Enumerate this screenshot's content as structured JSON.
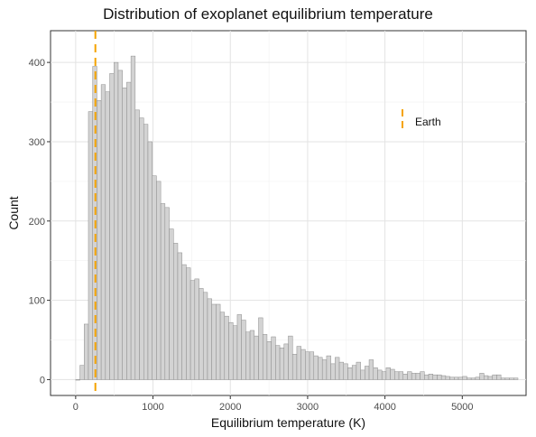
{
  "chart_data": {
    "type": "bar",
    "title": "Distribution of exoplanet equilibrium temperature",
    "xlabel": "Equilibrium temperature (K)",
    "ylabel": "Count",
    "xlim": [
      -325,
      5825
    ],
    "ylim": [
      -20,
      440
    ],
    "x_ticks": [
      0,
      1000,
      2000,
      3000,
      4000,
      5000
    ],
    "y_ticks": [
      0,
      100,
      200,
      300,
      400
    ],
    "grid": true,
    "bin_start": 0,
    "bin_width": 55,
    "bin_counts": [
      0,
      18,
      70,
      338,
      395,
      352,
      372,
      363,
      386,
      400,
      390,
      368,
      375,
      408,
      340,
      330,
      322,
      300,
      257,
      250,
      222,
      217,
      190,
      172,
      160,
      145,
      141,
      125,
      127,
      115,
      110,
      102,
      95,
      95,
      85,
      80,
      72,
      68,
      82,
      75,
      60,
      62,
      55,
      78,
      57,
      48,
      54,
      43,
      40,
      45,
      55,
      32,
      42,
      38,
      35,
      35,
      30,
      28,
      25,
      30,
      20,
      28,
      22,
      20,
      15,
      18,
      22,
      12,
      17,
      25,
      15,
      12,
      10,
      15,
      13,
      10,
      10,
      7,
      10,
      8,
      8,
      10,
      6,
      7,
      6,
      6,
      5,
      4,
      3,
      3,
      3,
      4,
      2,
      2,
      3,
      8,
      5,
      4,
      6,
      6,
      2,
      2,
      2,
      2
    ],
    "bar_color": "#d3d3d3",
    "bar_edge_color": "#8c8c8c",
    "reference_line": {
      "x": 255,
      "label": "Earth",
      "color": "#f5a300",
      "style": "dashed"
    },
    "legend_placement": "top-right"
  }
}
